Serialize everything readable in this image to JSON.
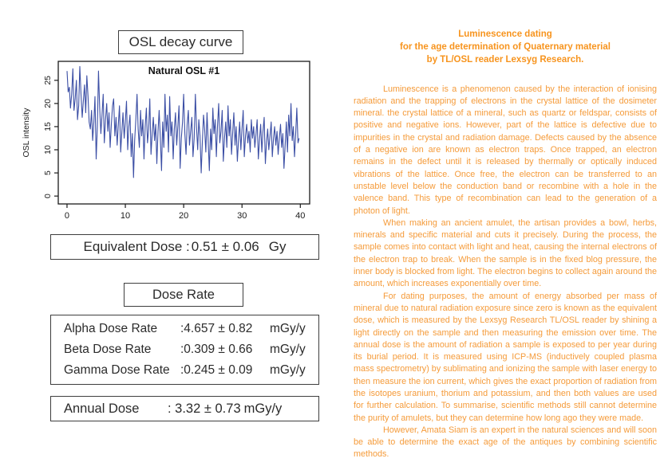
{
  "left": {
    "chart_section_title": "OSL decay curve",
    "equivalent_dose": {
      "label": "Equivalent Dose :",
      "value": "0.51 ± 0.06",
      "unit": "Gy"
    },
    "dose_rate_section_title": "Dose Rate",
    "dose_rates": [
      {
        "label": "Alpha Dose Rate",
        "value": ":4.657 ± 0.82",
        "unit": "mGy/y"
      },
      {
        "label": "Beta Dose Rate",
        "value": ":0.309 ± 0.66",
        "unit": "mGy/y"
      },
      {
        "label": "Gamma Dose Rate",
        "value": ":0.245 ± 0.09",
        "unit": "mGy/y"
      }
    ],
    "annual_dose": {
      "label": "Annual Dose",
      "value": ": 3.32 ± 0.73",
      "unit": "mGy/y"
    }
  },
  "chart_data": {
    "type": "line",
    "title": "Natural OSL #1",
    "xlabel": "",
    "ylabel": "OSL intensity",
    "xticks": [
      0,
      10,
      20,
      30,
      40
    ],
    "yticks": [
      0,
      5,
      10,
      15,
      20,
      25
    ],
    "xlim": [
      -1.5,
      41.6
    ],
    "ylim": [
      -1.7,
      29.1
    ],
    "grid": false,
    "frame": true,
    "line_color": "#3c4fa5",
    "x_start": 0,
    "x_step": 0.2,
    "values": [
      27.0,
      22.5,
      23.5,
      19.0,
      22.0,
      27.5,
      18.5,
      21.0,
      25.0,
      16.5,
      19.5,
      28.0,
      22.0,
      17.0,
      20.5,
      24.0,
      18.0,
      26.0,
      21.5,
      16.0,
      14.5,
      18.5,
      12.0,
      16.0,
      21.5,
      8.0,
      15.0,
      27.0,
      19.0,
      13.5,
      17.5,
      22.0,
      11.5,
      16.5,
      20.0,
      14.0,
      18.0,
      10.5,
      15.5,
      19.5,
      21.0,
      13.0,
      17.0,
      11.0,
      15.5,
      19.5,
      9.5,
      14.0,
      18.0,
      12.5,
      16.0,
      20.5,
      10.0,
      15.0,
      17.5,
      8.5,
      13.5,
      4.0,
      12.0,
      16.5,
      22.0,
      14.5,
      10.5,
      18.5,
      13.0,
      16.5,
      8.0,
      15.0,
      19.0,
      11.5,
      14.5,
      21.0,
      9.0,
      13.5,
      17.0,
      12.0,
      15.5,
      7.0,
      14.0,
      18.5,
      12.5,
      5.5,
      16.0,
      10.5,
      22.0,
      14.0,
      17.5,
      9.5,
      21.5,
      13.0,
      16.0,
      8.0,
      14.5,
      18.0,
      11.0,
      15.0,
      19.5,
      6.0,
      12.5,
      16.0,
      22.0,
      13.5,
      9.0,
      15.5,
      18.5,
      11.0,
      14.0,
      17.0,
      8.5,
      12.5,
      22.0,
      15.0,
      10.0,
      16.5,
      13.0,
      5.0,
      11.5,
      17.5,
      14.5,
      9.5,
      18.0,
      12.0,
      5.5,
      14.5,
      10.0,
      19.0,
      13.5,
      16.5,
      8.5,
      15.0,
      20.0,
      11.5,
      14.0,
      18.5,
      7.5,
      12.5,
      16.0,
      10.5,
      19.5,
      13.0,
      16.5,
      9.0,
      13.5,
      18.0,
      11.0,
      15.0,
      7.5,
      12.0,
      16.0,
      10.0,
      14.5,
      18.5,
      8.5,
      13.0,
      15.5,
      11.5,
      14.0,
      9.5,
      16.5,
      12.5,
      15.0,
      10.5,
      13.5,
      16.5,
      8.0,
      12.0,
      15.5,
      9.5,
      14.0,
      17.0,
      7.0,
      11.5,
      14.5,
      10.0,
      13.0,
      16.0,
      8.5,
      12.5,
      15.0,
      11.0,
      14.0,
      9.0,
      12.5,
      15.5,
      10.5,
      13.5,
      6.0,
      11.0,
      16.0,
      9.5,
      17.5,
      13.0,
      20.0,
      12.0,
      15.0,
      8.5,
      13.5,
      19.0,
      11.5,
      12.5
    ]
  },
  "right": {
    "heading_color": "#f7941e",
    "body_color": "#f59b3a",
    "heading_lines": [
      "Luminescence dating",
      "for the age determination of Quaternary material",
      "by TL/OSL reader Lexsyg Research."
    ],
    "paragraphs": [
      "Luminescence is a phenomenon caused by the interaction of ionising radiation and the trapping of electrons in the crystal lattice of the dosimeter mineral. the crystal lattice of a mineral, such as quartz or feldspar, consists of positive and negative ions. However, part of the lattice is defective due to impurities in the crystal and radiation damage. Defects caused by the absence of a negative ion are known as electron traps. Once trapped, an electron remains in the defect until it is released by thermally or optically induced vibrations of the lattice. Once free, the electron can be transferred to an unstable level below the conduction band or recombine with a hole in the valence band. This type of recombination can lead to the generation of a photon of light.",
      "When making an ancient amulet, the artisan provides a bowl, herbs, minerals and specific material and cuts it precisely. During the process, the sample comes into contact with light and heat, causing the internal electrons of the electron trap to break. When the sample is in the fixed blog pressure, the inner body is blocked from light. The electron begins to collect again around the amount, which increases exponentially over time.",
      "For dating purposes, the amount of energy absorbed per mass of mineral due to natural radiation exposure since zero is known as the equivalent dose, which is measured by the Lexsyg Research TL/OSL reader by shining a light directly on the sample and then measuring the emission over time. The annual dose is the amount of radiation a sample is exposed to per year during its burial period. It is measured using ICP-MS (inductively coupled plasma mass spectrometry) by sublimating and ionizing the sample with laser energy to then measure the ion current, which gives the exact proportion of radiation from the isotopes uranium, thorium and potassium, and then both values are used for further calculation. To summarise, scientific methods still cannot determine the purity of amulets, but they can determine how long ago they were made.",
      "However, Amata Siam is an expert in the natural sciences and will soon be able to determine the exact age of the antiques by combining scientific methods."
    ]
  }
}
